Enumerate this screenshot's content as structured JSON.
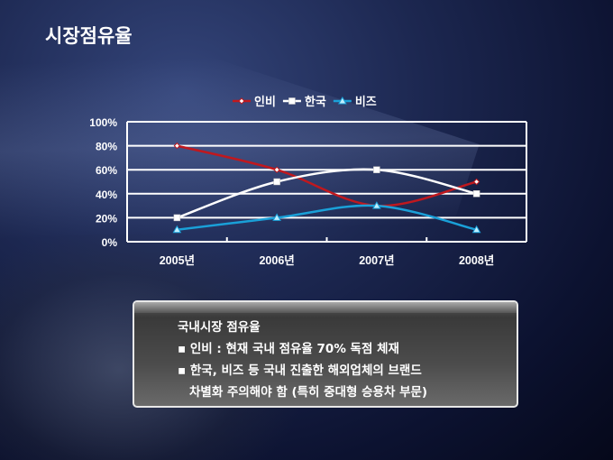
{
  "page_title": "시장점유율",
  "chart_data": {
    "type": "line",
    "categories": [
      "2005년",
      "2006년",
      "2007년",
      "2008년"
    ],
    "series": [
      {
        "name": "인비",
        "values": [
          80,
          60,
          30,
          50
        ],
        "color": "#c0181e",
        "marker": "diamond"
      },
      {
        "name": "한국",
        "values": [
          20,
          50,
          60,
          40
        ],
        "color": "#ffffff",
        "marker": "square"
      },
      {
        "name": "비즈",
        "values": [
          10,
          20,
          30,
          10
        ],
        "color": "#1aa0d8",
        "marker": "triangle"
      }
    ],
    "yticks": [
      "0%",
      "20%",
      "40%",
      "60%",
      "80%",
      "100%"
    ],
    "ylim": [
      0,
      100
    ],
    "grid": true,
    "legend": "top"
  },
  "note_box": {
    "heading": "국내시장 점유율",
    "bullets": [
      "인비 : 현재 국내 점유율 70%  독점 체재",
      "한국, 비즈 등 국내 진출한 해외업체의 브랜드"
    ],
    "continuation": "차별화 주의해야 함 (특히 중대형 승용차 부문)",
    "bullet_symbol": "▪"
  }
}
